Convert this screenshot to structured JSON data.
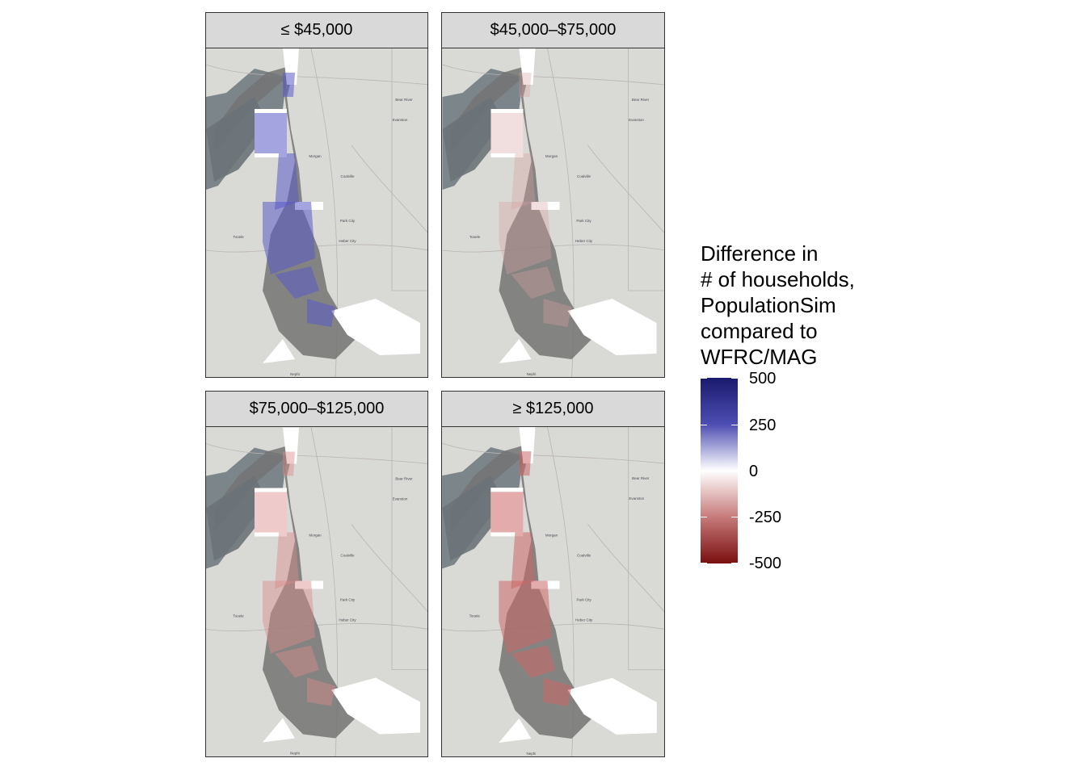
{
  "facets": [
    {
      "label": "≤ $45,000",
      "fill": "#5a5ac8",
      "opacity": 0.55
    },
    {
      "label": "$45,000–$75,000",
      "fill": "#d8a0a0",
      "opacity": 0.35
    },
    {
      "label": "$75,000–$125,000",
      "fill": "#d98a8a",
      "opacity": 0.45
    },
    {
      "label": "≥ $125,000",
      "fill": "#cc6666",
      "opacity": 0.55
    }
  ],
  "map_labels": [
    "Bear River",
    "Evanston",
    "Morgan",
    "Coalville",
    "Park City",
    "Tooele",
    "Heber City",
    "Nephi"
  ],
  "legend": {
    "title_lines": [
      "Difference in",
      "# of households,",
      "PopulationSim",
      "compared to",
      "WFRC/MAG"
    ],
    "ticks": [
      "500",
      "250",
      "0",
      "-250",
      "-500"
    ],
    "colors": {
      "high": "#1a1a6e",
      "mid": "#ffffff",
      "low": "#7a0f0f"
    }
  }
}
